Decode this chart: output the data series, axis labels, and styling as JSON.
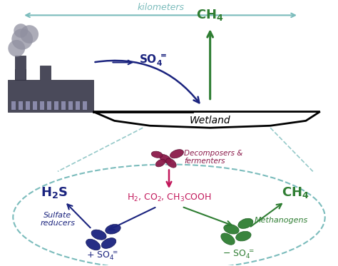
{
  "bg_color": "#ffffff",
  "teal_color": "#7bbcbc",
  "dark_blue_color": "#1a237e",
  "green_color": "#2e7d32",
  "crimson_color": "#8b1a4a",
  "pink_arrow_color": "#c2185b",
  "dark_navy": "#1a237e",
  "km_label": "kilometers",
  "km_color": "#7bbcbc",
  "wetland_label": "Wetland",
  "decomposers_label": "Decomposers &\nfermenters",
  "sulfate_reducers_label": "Sulfate\nreducers",
  "methanogens_label": "Methanogens",
  "fig_width": 4.74,
  "fig_height": 3.73
}
